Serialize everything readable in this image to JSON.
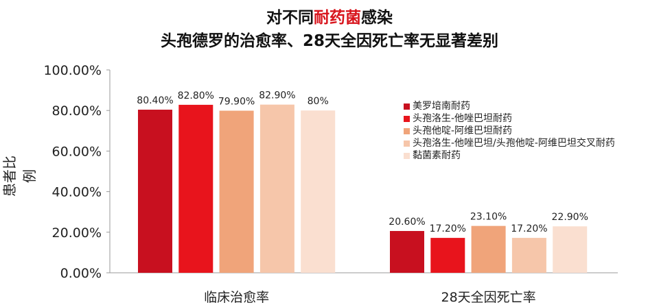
{
  "title": {
    "line1_pre": "对不同",
    "line1_highlight": "耐药菌",
    "line1_post": "感染",
    "line2": "头孢德罗的治愈率、28天全因死亡率无显著差别",
    "highlight_color": "#d8141c"
  },
  "chart_data": {
    "type": "bar",
    "categories": [
      "临床治愈率",
      "28天全因死亡率"
    ],
    "ylabel": "患者比例",
    "ylim": [
      0,
      100
    ],
    "yticks": [
      "0.00%",
      "20.00%",
      "40.00%",
      "60.00%",
      "80.00%",
      "100.00%"
    ],
    "grid": false,
    "legend_position": "right",
    "series": [
      {
        "name": "美罗培南耐药",
        "color": "#c8101f",
        "values": [
          80.4,
          20.6
        ],
        "labels": [
          "80.40%",
          "20.60%"
        ]
      },
      {
        "name": "头孢洛生-他唑巴坦耐药",
        "color": "#e8141c",
        "values": [
          82.8,
          17.2
        ],
        "labels": [
          "82.80%",
          "17.20%"
        ]
      },
      {
        "name": "头孢他啶-阿维巴坦耐药",
        "color": "#f0a47a",
        "values": [
          79.9,
          23.1
        ],
        "labels": [
          "79.90%",
          "23.10%"
        ]
      },
      {
        "name": "头孢洛生-他唑巴坦/头孢他啶-阿维巴坦交叉耐药",
        "color": "#f6c6aa",
        "values": [
          82.9,
          17.2
        ],
        "labels": [
          "82.90%",
          "17.20%"
        ]
      },
      {
        "name": "黏菌素耐药",
        "color": "#fadfd0",
        "values": [
          80,
          22.9
        ],
        "labels": [
          "80%",
          "22.90%"
        ]
      }
    ]
  }
}
